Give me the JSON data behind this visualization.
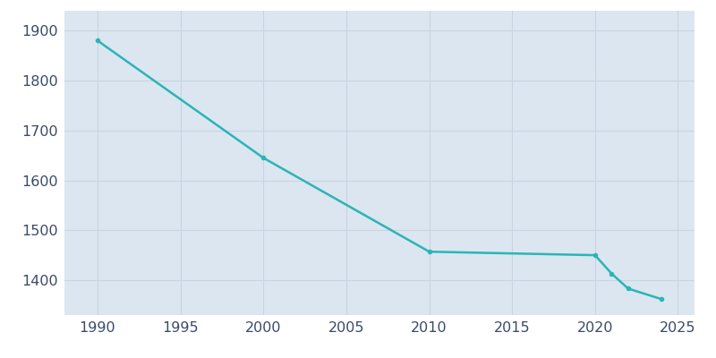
{
  "years": [
    1990,
    2000,
    2010,
    2020,
    2021,
    2022,
    2024
  ],
  "population": [
    1880,
    1645,
    1457,
    1450,
    1413,
    1383,
    1362
  ],
  "line_color": "#2ab5b5",
  "marker_color": "#2ab5b5",
  "plot_bg_color": "#dce6f0",
  "fig_bg_color": "#ffffff",
  "grid_color": "#c8d4e3",
  "xlim": [
    1988,
    2026
  ],
  "ylim": [
    1330,
    1940
  ],
  "xticks": [
    1990,
    1995,
    2000,
    2005,
    2010,
    2015,
    2020,
    2025
  ],
  "yticks": [
    1400,
    1500,
    1600,
    1700,
    1800,
    1900
  ],
  "tick_color": "#3a4a6b",
  "tick_fontsize": 11.5
}
